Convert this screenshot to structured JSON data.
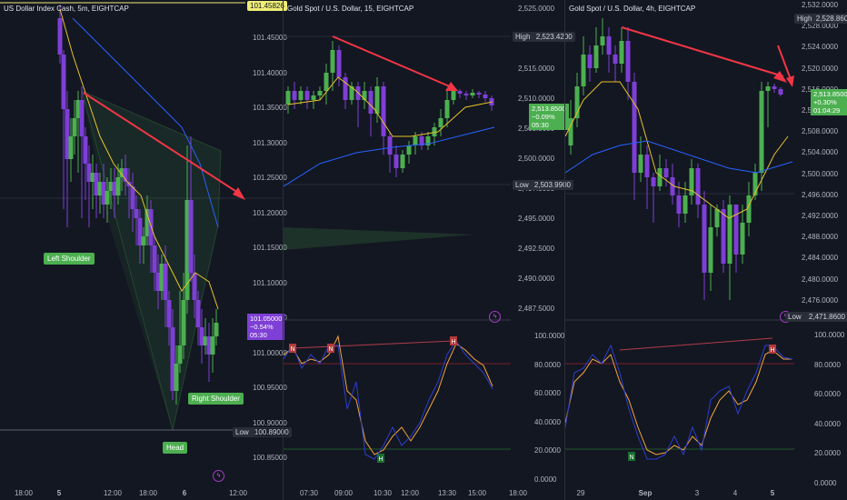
{
  "colors": {
    "up": "#4caf50",
    "down": "#7e3fd6",
    "arrow": "#f23645",
    "ma_yellow": "#e5c228",
    "ma_blue": "#2962ff",
    "stoch_blue": "#2c3ecf",
    "stoch_orange": "#f0a53a",
    "bg": "#131722"
  },
  "pane1": {
    "title": "US Dollar Index Cash, 5m, EIGHTCAP",
    "top_tag": "101.45826",
    "y_ticks": [
      "101.45000",
      "101.40000",
      "101.35000",
      "101.30000",
      "101.25000",
      "101.20000",
      "101.15000",
      "101.10000",
      "101.05000",
      "101.00000",
      "100.95000",
      "100.90000",
      "100.85000"
    ],
    "price_tag": [
      "101.05000",
      "−0.54%",
      "05:30"
    ],
    "low_label": "Low",
    "low_value": "100.89000",
    "x_ticks": [
      "18:00",
      "5",
      "12:00",
      "18:00",
      "6",
      "12:00"
    ],
    "labels": {
      "left_shoulder": "Left Shoulder",
      "right_shoulder": "Right Shoulder",
      "head": "Head"
    },
    "bolt_icon": "lightning-icon"
  },
  "pane2": {
    "title": "Gold Spot / U.S. Dollar, 15, EIGHTCAP",
    "y_ticks": [
      "2,525.0000",
      "2,520.0000",
      "2,515.0000",
      "2,510.0000",
      "2,505.0000",
      "2,500.0000",
      "2,497.5000",
      "2,495.0000",
      "2,492.5000",
      "2,490.0000",
      "2,487.5000"
    ],
    "high_label": "High",
    "high_value": "2,523.4200",
    "low_label": "Low",
    "low_value": "2,503.9900",
    "price_tag": [
      "2,513.8500",
      "−0.09%",
      "05:30"
    ],
    "osc_ticks": [
      "100.0000",
      "80.0000",
      "60.0000",
      "40.0000",
      "20.0000",
      "0.0000"
    ],
    "x_ticks": [
      "07:30",
      "09:00",
      "10:30",
      "12:00",
      "13:30",
      "15:00",
      "18:00"
    ],
    "markers": [
      "N",
      "N",
      "H",
      "H"
    ],
    "bolt_icon": "lightning-icon"
  },
  "pane3": {
    "title": "Gold Spot / U.S. Dollar, 4h, EIGHTCAP",
    "y_ticks": [
      "2,532.0000",
      "2,528.0000",
      "2,524.0000",
      "2,520.0000",
      "2,516.0000",
      "2,512.0000",
      "2,508.0000",
      "2,504.0000",
      "2,500.0000",
      "2,496.0000",
      "2,492.0000",
      "2,488.0000",
      "2,484.0000",
      "2,480.0000",
      "2,476.0000"
    ],
    "high_label": "High",
    "high_value": "2,528.8600",
    "low_label": "Low",
    "low_value": "2,471.8600",
    "price_tag": [
      "2,513.8500",
      "+0.30%",
      "01:04:29"
    ],
    "osc_ticks": [
      "100.0000",
      "80.0000",
      "60.0000",
      "40.0000",
      "20.0000",
      "0.0000"
    ],
    "x_ticks": [
      "29",
      "Sep",
      "3",
      "4",
      "5"
    ],
    "markers": [
      "N",
      "H"
    ],
    "bolt_icon": "lightning-icon"
  }
}
